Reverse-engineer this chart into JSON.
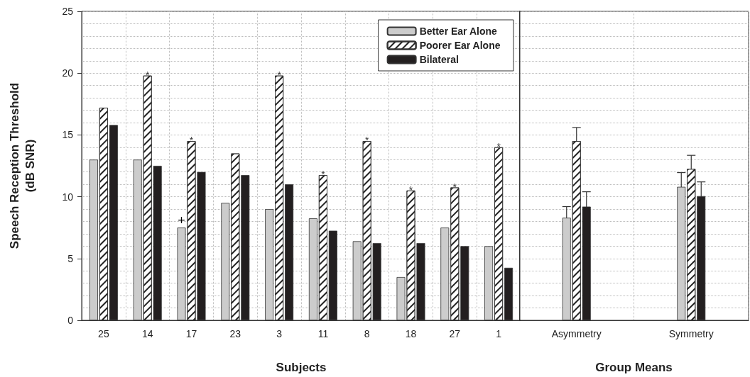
{
  "chart_data": [
    {
      "type": "bar",
      "xlabel": "Subjects",
      "ylabel": "Speech Reception Threshold\n(dB SNR)",
      "categories": [
        "25",
        "14",
        "17",
        "23",
        "3",
        "11",
        "8",
        "18",
        "27",
        "1"
      ],
      "series": [
        {
          "name": "Better Ear Alone",
          "color": "#cccccc",
          "values": [
            13,
            13,
            7.5,
            9.5,
            9,
            8.25,
            6.4,
            3.5,
            7.5,
            6
          ],
          "value_labels": [
            null,
            null,
            "+",
            null,
            null,
            null,
            null,
            null,
            null,
            null
          ]
        },
        {
          "name": "Poorer Ear Alone",
          "color": "#ffffff",
          "values": [
            17.2,
            19.8,
            14.5,
            13.5,
            19.8,
            11.75,
            14.5,
            10.5,
            10.75,
            14
          ]
        },
        {
          "name": "Bilateral",
          "color": "#231f20",
          "values": [
            15.8,
            12.5,
            12,
            11.75,
            11,
            7.25,
            6.25,
            6.25,
            6,
            4.25
          ]
        }
      ],
      "ylim": [
        0,
        25
      ],
      "yticks": [
        0,
        5,
        10,
        15,
        20,
        25
      ],
      "grid": true,
      "legend": "top right",
      "annotations": [
        {
          "text": "*",
          "x": "14",
          "y": 19.8
        },
        {
          "text": "*",
          "x": "17",
          "y": 14.5
        },
        {
          "text": "*",
          "x": "3",
          "y": 19.8
        },
        {
          "text": "*",
          "x": "11",
          "y": 11.75
        },
        {
          "text": "*",
          "x": "8",
          "y": 14.5
        },
        {
          "text": "*",
          "x": "18",
          "y": 10.5
        },
        {
          "text": "*",
          "x": "27",
          "y": 10.75
        },
        {
          "text": "*",
          "x": "1",
          "y": 14
        }
      ]
    },
    {
      "type": "bar",
      "xlabel": "Group Means",
      "categories": [
        "Asymmetry",
        "Symmetry"
      ],
      "series": [
        {
          "color": "#cccccc",
          "values": [
            8.3,
            10.8
          ],
          "errors": [
            0.9,
            1.15
          ]
        },
        {
          "color": "#ffffff",
          "values": [
            14.5,
            12.25
          ],
          "errors": [
            1.1,
            1.1
          ]
        },
        {
          "color": "#231f20",
          "values": [
            9.2,
            10.05
          ],
          "errors": [
            1.2,
            1.15
          ]
        }
      ],
      "ylim": [
        0,
        25
      ],
      "yticks": [
        0,
        5,
        10,
        15,
        20,
        25
      ],
      "grid": true,
      "tick_labels": "x"
    }
  ]
}
